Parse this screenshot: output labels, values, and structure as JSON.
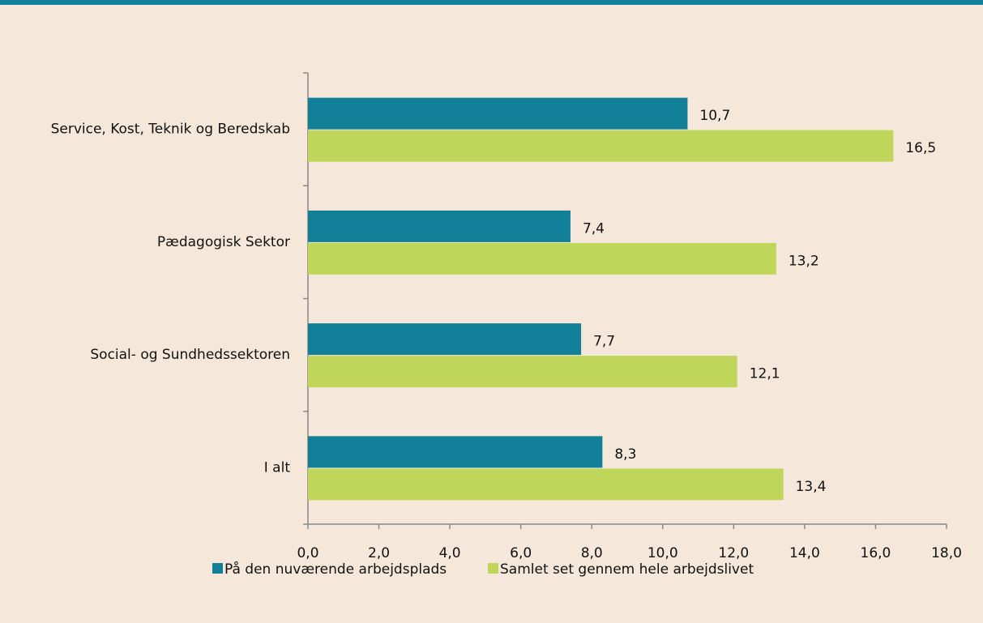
{
  "chart_data": {
    "type": "hbar",
    "categories": [
      "Service, Kost, Teknik og Beredskab",
      "Pædagogisk Sektor",
      "Social- og Sundhedssektoren",
      "I alt"
    ],
    "series": [
      {
        "name": "På den nuværende arbejdsplads",
        "color": "#13809a",
        "values": [
          10.7,
          7.4,
          7.7,
          8.3
        ],
        "value_labels": [
          "10,7",
          "7,4",
          "7,7",
          "8,3"
        ]
      },
      {
        "name": "Samlet set gennem hele arbejdslivet",
        "color": "#bfd65a",
        "values": [
          16.5,
          13.2,
          12.1,
          13.4
        ],
        "value_labels": [
          "16,5",
          "13,2",
          "12,1",
          "13,4"
        ]
      }
    ],
    "xlim": [
      0,
      18
    ],
    "xticks": [
      {
        "value": 0,
        "label": "0,0"
      },
      {
        "value": 2,
        "label": "2,0"
      },
      {
        "value": 4,
        "label": "4,0"
      },
      {
        "value": 6,
        "label": "6,0"
      },
      {
        "value": 8,
        "label": "8,0"
      },
      {
        "value": 10,
        "label": "10,0"
      },
      {
        "value": 12,
        "label": "12,0"
      },
      {
        "value": 14,
        "label": "14,0"
      },
      {
        "value": 16,
        "label": "16,0"
      },
      {
        "value": 18,
        "label": "18,0"
      }
    ],
    "grid": false,
    "legend": "bottom"
  }
}
